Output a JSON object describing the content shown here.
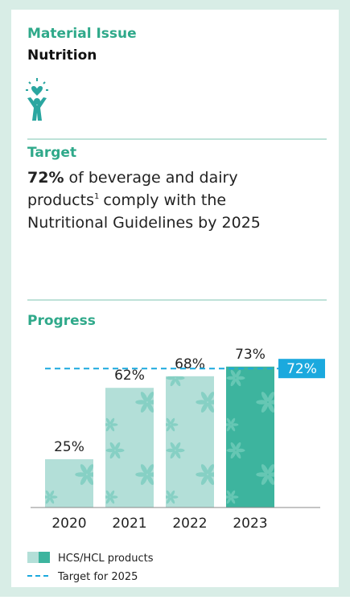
{
  "material_issue": {
    "label": "Material Issue",
    "name": "Nutrition"
  },
  "target_section": {
    "heading": "Target",
    "highlight": "72%",
    "line1": "of beverage and dairy",
    "line2a": "products",
    "footnote": "1",
    "line2b": "comply with the",
    "line3": "Nutritional Guidelines by 2025"
  },
  "chart_data": {
    "type": "bar",
    "title": "Progress",
    "categories": [
      "2020",
      "2021",
      "2022",
      "2023"
    ],
    "series": [
      {
        "name": "HCS/HCL products",
        "colors": [
          "#b3dfd8",
          "#b3dfd8",
          "#b3dfd8",
          "#3db49e"
        ],
        "values": [
          25,
          62,
          68,
          73
        ],
        "value_labels": [
          "25%",
          "62%",
          "68%",
          "73%"
        ]
      }
    ],
    "target": {
      "name": "Target for 2025",
      "value": 72,
      "value_label": "72%",
      "color": "#1ba9de"
    },
    "ylim": [
      0,
      100
    ]
  }
}
